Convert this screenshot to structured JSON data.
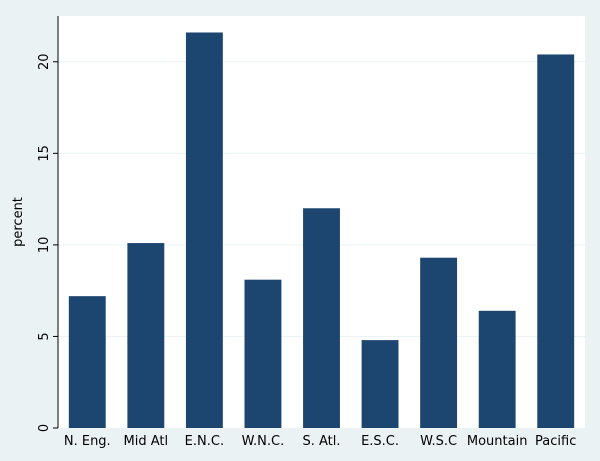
{
  "chart_data": {
    "type": "bar",
    "title": "",
    "xlabel": "",
    "ylabel": "percent",
    "categories": [
      "N. Eng.",
      "Mid Atl",
      "E.N.C.",
      "W.N.C.",
      "S. Atl.",
      "E.S.C.",
      "W.S.C",
      "Mountain",
      "Pacific"
    ],
    "values": [
      7.2,
      10.1,
      21.6,
      8.1,
      12.0,
      4.8,
      9.3,
      6.4,
      20.4
    ],
    "ylim": [
      0,
      22.5
    ],
    "yticks": [
      0,
      5,
      10,
      15,
      20
    ],
    "grid": true,
    "bar_color": "#1c4670",
    "grid_color": "#eaf2f3",
    "plot_background": "#ffffff",
    "page_background": "#eaf2f3"
  }
}
